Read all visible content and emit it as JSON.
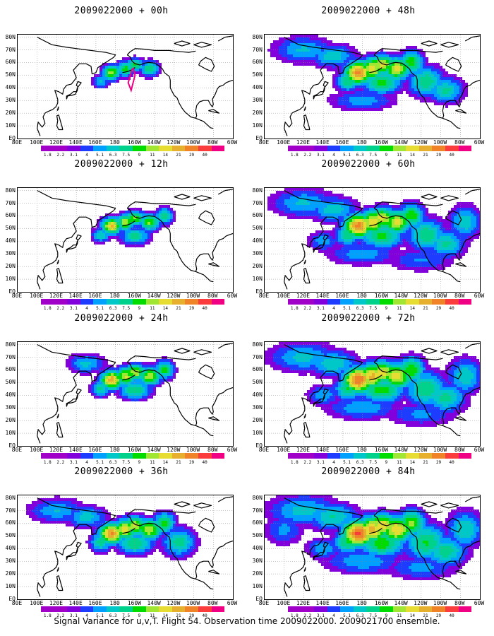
{
  "caption": "Signal Variance for u,v,T. Flight 54. Observation time 2009022000. 2009021700 ensemble.",
  "lat_ticks": [
    "80N",
    "70N",
    "60N",
    "50N",
    "40N",
    "30N",
    "20N",
    "10N",
    "EQ"
  ],
  "lon_ticks": [
    "80E",
    "100E",
    "120E",
    "140E",
    "160E",
    "180",
    "160W",
    "140W",
    "120W",
    "100W",
    "80W",
    "60W"
  ],
  "colorbar": {
    "levels": [
      "1.8",
      "2.2",
      "3.1",
      "4",
      "5.1",
      "6.3",
      "7.5",
      "9",
      "11",
      "14",
      "21",
      "29",
      "40"
    ],
    "colors": [
      "#a000c8",
      "#8200dc",
      "#1e3cff",
      "#00a0ff",
      "#00c8c8",
      "#00d28c",
      "#00dc00",
      "#a0e632",
      "#e6dc32",
      "#e6af2d",
      "#f08228",
      "#fa3c3c",
      "#f00082"
    ]
  },
  "panels": [
    {
      "title": "2009022000 + 00h",
      "lead_hours": 0,
      "spread": 0.25,
      "peak": 0.55,
      "track": true
    },
    {
      "title": "2009022000 + 48h",
      "lead_hours": 48,
      "spread": 0.7,
      "peak": 0.75,
      "track": false
    },
    {
      "title": "2009022000 + 12h",
      "lead_hours": 12,
      "spread": 0.35,
      "peak": 0.65,
      "track": false
    },
    {
      "title": "2009022000 + 60h",
      "lead_hours": 60,
      "spread": 0.8,
      "peak": 0.75,
      "track": false
    },
    {
      "title": "2009022000 + 24h",
      "lead_hours": 24,
      "spread": 0.45,
      "peak": 0.7,
      "track": false
    },
    {
      "title": "2009022000 + 72h",
      "lead_hours": 72,
      "spread": 0.88,
      "peak": 0.78,
      "track": false
    },
    {
      "title": "2009022000 + 36h",
      "lead_hours": 36,
      "spread": 0.6,
      "peak": 0.72,
      "track": false
    },
    {
      "title": "2009022000 + 84h",
      "lead_hours": 84,
      "spread": 0.95,
      "peak": 0.8,
      "track": false
    }
  ]
}
